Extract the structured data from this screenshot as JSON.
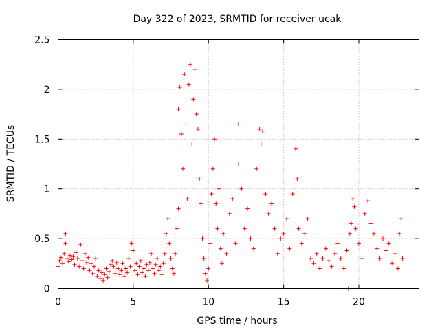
{
  "chart_data": {
    "type": "scatter",
    "title": "Day 322 of 2023, SRMTID for receiver ucak",
    "xlabel": "GPS time / hours",
    "ylabel": "SRMTID / TECUs",
    "xlim": [
      0,
      24
    ],
    "ylim": [
      0,
      2.5
    ],
    "x_ticks": [
      0,
      5,
      10,
      15,
      20
    ],
    "x_tick_labels": [
      "0",
      "5",
      "10",
      "15",
      "20"
    ],
    "y_ticks": [
      0,
      0.5,
      1,
      1.5,
      2,
      2.5
    ],
    "y_tick_labels": [
      "0",
      "0.5",
      "1",
      "1.5",
      "2",
      "2.5"
    ],
    "grid": true,
    "marker": "+",
    "color": "#ff0000",
    "series": [
      {
        "name": "SRMTID",
        "points": [
          [
            0.0,
            0.22
          ],
          [
            0.1,
            0.28
          ],
          [
            0.2,
            0.31
          ],
          [
            0.3,
            0.25
          ],
          [
            0.4,
            0.35
          ],
          [
            0.5,
            0.55
          ],
          [
            0.5,
            0.45
          ],
          [
            0.6,
            0.3
          ],
          [
            0.7,
            0.27
          ],
          [
            0.8,
            0.33
          ],
          [
            0.9,
            0.29
          ],
          [
            1.0,
            0.32
          ],
          [
            1.1,
            0.24
          ],
          [
            1.2,
            0.36
          ],
          [
            1.3,
            0.3
          ],
          [
            1.4,
            0.22
          ],
          [
            1.5,
            0.44
          ],
          [
            1.6,
            0.28
          ],
          [
            1.7,
            0.2
          ],
          [
            1.8,
            0.35
          ],
          [
            1.9,
            0.26
          ],
          [
            2.0,
            0.31
          ],
          [
            2.1,
            0.18
          ],
          [
            2.2,
            0.25
          ],
          [
            2.3,
            0.15
          ],
          [
            2.4,
            0.22
          ],
          [
            2.5,
            0.3
          ],
          [
            2.6,
            0.12
          ],
          [
            2.7,
            0.18
          ],
          [
            2.8,
            0.1
          ],
          [
            2.9,
            0.16
          ],
          [
            3.0,
            0.08
          ],
          [
            3.1,
            0.14
          ],
          [
            3.2,
            0.2
          ],
          [
            3.3,
            0.11
          ],
          [
            3.4,
            0.17
          ],
          [
            3.5,
            0.24
          ],
          [
            3.6,
            0.28
          ],
          [
            3.7,
            0.22
          ],
          [
            3.8,
            0.15
          ],
          [
            3.9,
            0.26
          ],
          [
            4.0,
            0.2
          ],
          [
            4.1,
            0.14
          ],
          [
            4.2,
            0.18
          ],
          [
            4.3,
            0.25
          ],
          [
            4.4,
            0.12
          ],
          [
            4.5,
            0.2
          ],
          [
            4.6,
            0.16
          ],
          [
            4.7,
            0.3
          ],
          [
            4.8,
            0.22
          ],
          [
            4.9,
            0.45
          ],
          [
            5.0,
            0.38
          ],
          [
            5.1,
            0.18
          ],
          [
            5.2,
            0.25
          ],
          [
            5.3,
            0.14
          ],
          [
            5.4,
            0.22
          ],
          [
            5.5,
            0.28
          ],
          [
            5.6,
            0.16
          ],
          [
            5.7,
            0.2
          ],
          [
            5.8,
            0.12
          ],
          [
            5.9,
            0.24
          ],
          [
            6.0,
            0.18
          ],
          [
            6.1,
            0.26
          ],
          [
            6.2,
            0.35
          ],
          [
            6.3,
            0.2
          ],
          [
            6.4,
            0.15
          ],
          [
            6.5,
            0.24
          ],
          [
            6.6,
            0.3
          ],
          [
            6.7,
            0.18
          ],
          [
            6.8,
            0.22
          ],
          [
            6.9,
            0.14
          ],
          [
            7.0,
            0.25
          ],
          [
            7.1,
            0.35
          ],
          [
            7.2,
            0.55
          ],
          [
            7.3,
            0.7
          ],
          [
            7.4,
            0.45
          ],
          [
            7.5,
            0.3
          ],
          [
            7.6,
            0.2
          ],
          [
            7.7,
            0.15
          ],
          [
            7.8,
            0.35
          ],
          [
            7.9,
            0.6
          ],
          [
            8.0,
            0.8
          ],
          [
            8.0,
            1.8
          ],
          [
            8.1,
            2.02
          ],
          [
            8.2,
            1.55
          ],
          [
            8.3,
            1.2
          ],
          [
            8.4,
            2.15
          ],
          [
            8.5,
            1.65
          ],
          [
            8.6,
            0.9
          ],
          [
            8.7,
            2.05
          ],
          [
            8.8,
            2.25
          ],
          [
            8.9,
            1.45
          ],
          [
            9.0,
            1.9
          ],
          [
            9.1,
            2.2
          ],
          [
            9.2,
            1.75
          ],
          [
            9.3,
            1.6
          ],
          [
            9.4,
            1.1
          ],
          [
            9.5,
            0.85
          ],
          [
            9.6,
            0.5
          ],
          [
            9.7,
            0.3
          ],
          [
            9.8,
            0.15
          ],
          [
            9.9,
            0.08
          ],
          [
            10.0,
            0.2
          ],
          [
            10.1,
            0.45
          ],
          [
            10.2,
            0.95
          ],
          [
            10.3,
            1.2
          ],
          [
            10.4,
            1.5
          ],
          [
            10.5,
            0.85
          ],
          [
            10.6,
            0.6
          ],
          [
            10.7,
            1.0
          ],
          [
            10.8,
            0.4
          ],
          [
            10.9,
            0.25
          ],
          [
            11.0,
            0.55
          ],
          [
            11.2,
            0.35
          ],
          [
            11.4,
            0.75
          ],
          [
            11.6,
            0.9
          ],
          [
            11.8,
            0.45
          ],
          [
            12.0,
            1.25
          ],
          [
            12.0,
            1.65
          ],
          [
            12.2,
            1.0
          ],
          [
            12.4,
            0.6
          ],
          [
            12.6,
            0.8
          ],
          [
            12.8,
            0.5
          ],
          [
            13.0,
            0.4
          ],
          [
            13.2,
            1.2
          ],
          [
            13.4,
            1.6
          ],
          [
            13.5,
            1.45
          ],
          [
            13.6,
            1.58
          ],
          [
            13.8,
            0.95
          ],
          [
            14.0,
            0.75
          ],
          [
            14.2,
            0.85
          ],
          [
            14.4,
            0.6
          ],
          [
            14.6,
            0.35
          ],
          [
            14.8,
            0.5
          ],
          [
            15.0,
            0.55
          ],
          [
            15.2,
            0.7
          ],
          [
            15.4,
            0.4
          ],
          [
            15.6,
            0.95
          ],
          [
            15.8,
            1.4
          ],
          [
            15.9,
            1.1
          ],
          [
            16.0,
            0.6
          ],
          [
            16.2,
            0.45
          ],
          [
            16.4,
            0.55
          ],
          [
            16.6,
            0.7
          ],
          [
            16.8,
            0.3
          ],
          [
            17.0,
            0.25
          ],
          [
            17.2,
            0.35
          ],
          [
            17.4,
            0.2
          ],
          [
            17.6,
            0.3
          ],
          [
            17.8,
            0.4
          ],
          [
            18.0,
            0.28
          ],
          [
            18.2,
            0.22
          ],
          [
            18.4,
            0.35
          ],
          [
            18.6,
            0.45
          ],
          [
            18.8,
            0.3
          ],
          [
            19.0,
            0.2
          ],
          [
            19.2,
            0.38
          ],
          [
            19.3,
            0.0
          ],
          [
            19.4,
            0.55
          ],
          [
            19.5,
            0.65
          ],
          [
            19.6,
            0.9
          ],
          [
            19.7,
            0.82
          ],
          [
            19.8,
            0.6
          ],
          [
            20.0,
            0.45
          ],
          [
            20.2,
            0.3
          ],
          [
            20.4,
            0.75
          ],
          [
            20.6,
            0.88
          ],
          [
            20.8,
            0.65
          ],
          [
            21.0,
            0.55
          ],
          [
            21.2,
            0.4
          ],
          [
            21.4,
            0.3
          ],
          [
            21.6,
            0.5
          ],
          [
            21.8,
            0.38
          ],
          [
            22.0,
            0.45
          ],
          [
            22.2,
            0.25
          ],
          [
            22.4,
            0.35
          ],
          [
            22.6,
            0.2
          ],
          [
            22.7,
            0.55
          ],
          [
            22.8,
            0.7
          ],
          [
            22.9,
            0.3
          ]
        ]
      }
    ]
  }
}
